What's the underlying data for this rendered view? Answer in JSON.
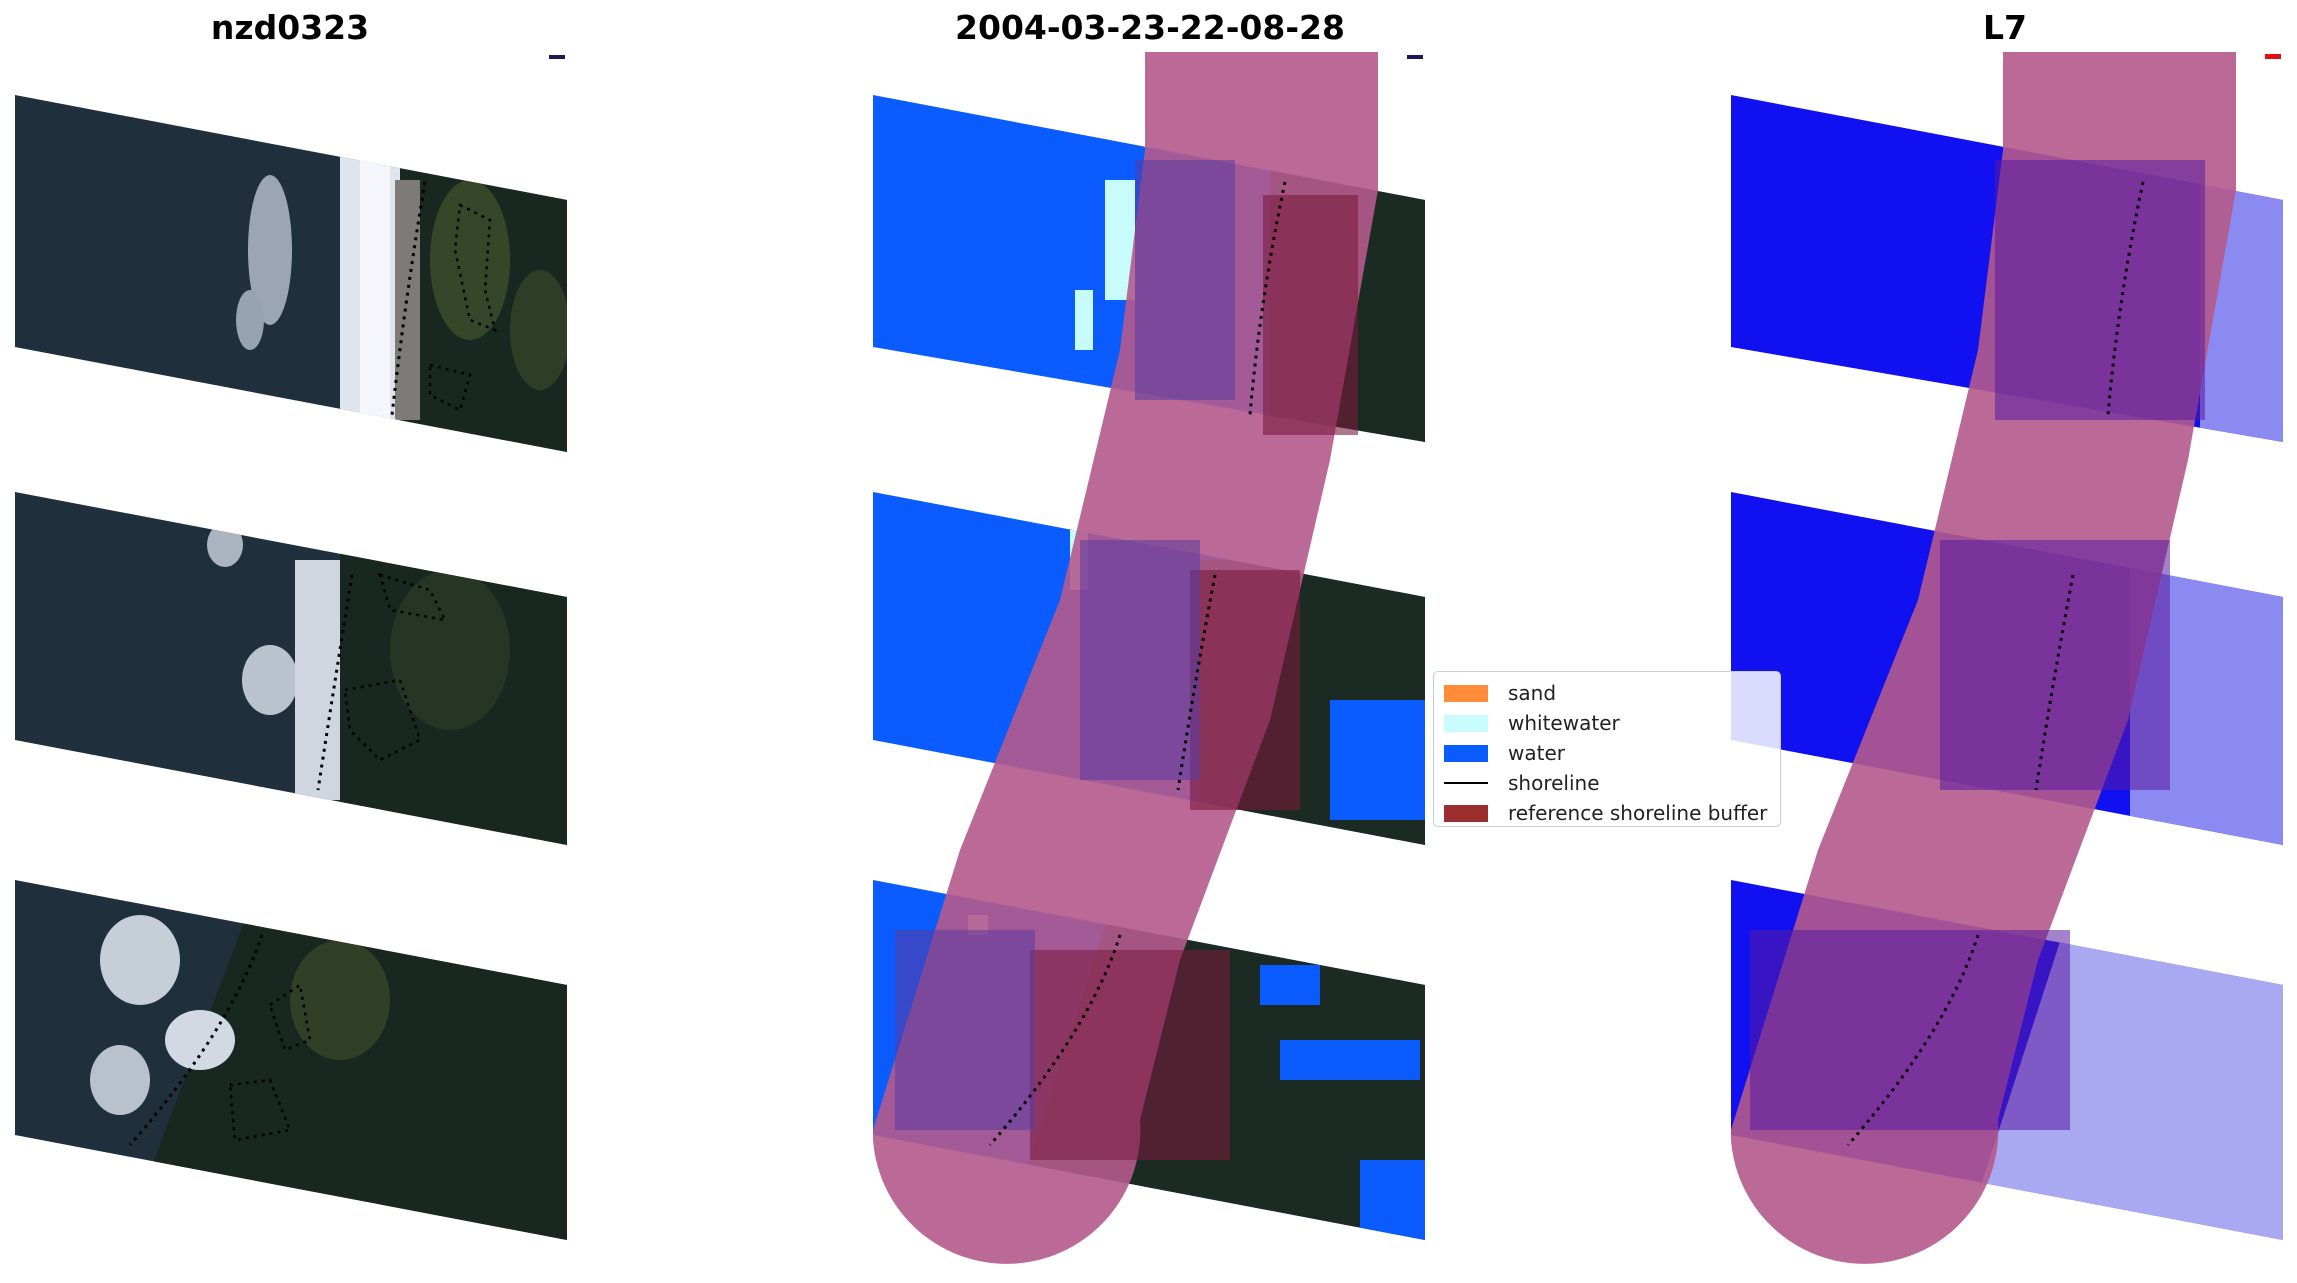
{
  "panels": [
    {
      "title": "nzd0323"
    },
    {
      "title": "2004-03-23-22-08-28"
    },
    {
      "title": "L7"
    }
  ],
  "legend": {
    "items": [
      {
        "label": "sand",
        "kind": "patch",
        "color": "#ff8c3a"
      },
      {
        "label": "whitewater",
        "kind": "patch",
        "color": "#c8fcfc"
      },
      {
        "label": "water",
        "kind": "patch",
        "color": "#0a5cff"
      },
      {
        "label": "shoreline",
        "kind": "line",
        "color": "#000000"
      },
      {
        "label": "reference shoreline buffer",
        "kind": "patch",
        "color": "#9b2f2f"
      }
    ]
  },
  "colors": {
    "ocean_dark": "#1f2f3c",
    "land_dark": "#18271f",
    "vegetation": "#3f4f2a",
    "surf": "#c9d2dd",
    "water_class": "#0a5cff",
    "whitewater_class": "#c8fcfc",
    "buffer_overlay": "#b45a8c",
    "l7_water": "#1010f0",
    "l7_land": "#8a8af0"
  }
}
